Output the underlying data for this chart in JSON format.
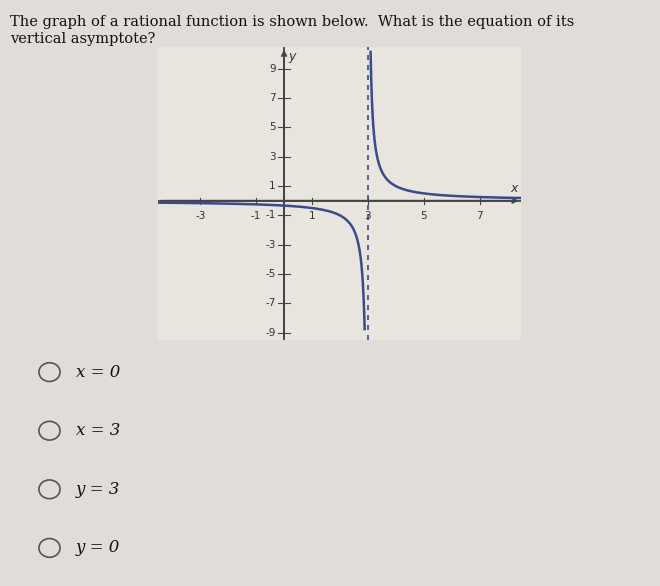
{
  "title_line1": "The graph of a rational function is shown below.  What is the equation of its",
  "title_line2": "vertical asymptote?",
  "title_fontsize": 10.5,
  "bg_color": "#e0ddd8",
  "plot_bg_color": "#e8e5df",
  "curve_color": "#3a4a8a",
  "asymptote_color": "#3a4a8a",
  "axis_color": "#444444",
  "vertical_asymptote_x": 3,
  "xlim": [
    -4.5,
    8.5
  ],
  "ylim": [
    -9.5,
    10.5
  ],
  "xticks": [
    -3,
    -1,
    1,
    3,
    5,
    7
  ],
  "yticks": [
    -9,
    -7,
    -5,
    -3,
    -1,
    1,
    3,
    5,
    7,
    9
  ],
  "choices": [
    "x = 0",
    "x = 3",
    "y = 3",
    "y = 0"
  ],
  "choices_fontsize": 12
}
